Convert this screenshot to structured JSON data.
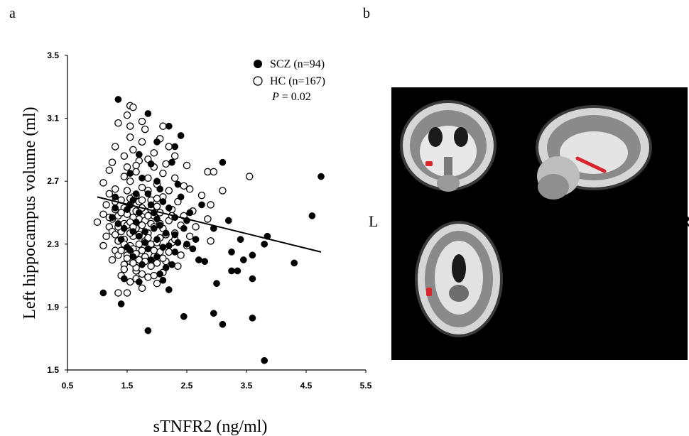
{
  "panels": {
    "a_label": "a",
    "b_label": "b"
  },
  "chart_data": {
    "type": "scatter",
    "xlabel": "sTNFR2 (ng/ml)",
    "ylabel": "Left hippocampus volume (ml)",
    "xlim": [
      0.5,
      5.5
    ],
    "ylim": [
      1.5,
      3.5
    ],
    "x_ticks": [
      "0.5",
      "1.5",
      "2.5",
      "3.5",
      "4.5",
      "5.5"
    ],
    "y_ticks": [
      "1.5",
      "1.9",
      "2.3",
      "2.7",
      "3.1",
      "3.5"
    ],
    "legend_placement": "top-right",
    "annotation": {
      "p_symbol": "P",
      "p_value": "= 0.02"
    },
    "trendline": {
      "x": [
        1.0,
        4.75
      ],
      "y": [
        2.6,
        2.25
      ]
    },
    "series": [
      {
        "name": "SCZ (n=94)",
        "marker": "filled",
        "points": [
          [
            1.35,
            3.22
          ],
          [
            1.85,
            3.13
          ],
          [
            2.2,
            3.05
          ],
          [
            2.4,
            2.99
          ],
          [
            2.3,
            2.92
          ],
          [
            2.0,
            2.95
          ],
          [
            1.7,
            2.87
          ],
          [
            1.9,
            2.81
          ],
          [
            2.25,
            2.82
          ],
          [
            3.1,
            2.82
          ],
          [
            1.55,
            2.75
          ],
          [
            1.75,
            2.72
          ],
          [
            2.0,
            2.7
          ],
          [
            2.35,
            2.68
          ],
          [
            4.75,
            2.73
          ],
          [
            1.3,
            2.6
          ],
          [
            1.6,
            2.58
          ],
          [
            1.85,
            2.62
          ],
          [
            2.1,
            2.57
          ],
          [
            2.4,
            2.6
          ],
          [
            2.75,
            2.55
          ],
          [
            1.5,
            2.52
          ],
          [
            1.95,
            2.5
          ],
          [
            2.3,
            2.47
          ],
          [
            2.55,
            2.5
          ],
          [
            1.25,
            2.47
          ],
          [
            1.65,
            2.44
          ],
          [
            2.05,
            2.42
          ],
          [
            2.5,
            2.45
          ],
          [
            3.2,
            2.45
          ],
          [
            4.6,
            2.48
          ],
          [
            1.45,
            2.4
          ],
          [
            1.8,
            2.38
          ],
          [
            2.15,
            2.37
          ],
          [
            2.45,
            2.4
          ],
          [
            2.95,
            2.4
          ],
          [
            1.4,
            2.33
          ],
          [
            1.7,
            2.35
          ],
          [
            2.0,
            2.33
          ],
          [
            2.35,
            2.31
          ],
          [
            2.65,
            2.33
          ],
          [
            3.4,
            2.33
          ],
          [
            3.85,
            2.35
          ],
          [
            1.5,
            2.28
          ],
          [
            1.85,
            2.27
          ],
          [
            2.2,
            2.29
          ],
          [
            2.6,
            2.27
          ],
          [
            3.8,
            2.3
          ],
          [
            1.6,
            2.22
          ],
          [
            2.0,
            2.22
          ],
          [
            2.3,
            2.25
          ],
          [
            3.25,
            2.25
          ],
          [
            3.45,
            2.2
          ],
          [
            1.75,
            2.17
          ],
          [
            2.15,
            2.15
          ],
          [
            2.8,
            2.19
          ],
          [
            3.6,
            2.23
          ],
          [
            4.3,
            2.18
          ],
          [
            2.05,
            2.11
          ],
          [
            3.25,
            2.13
          ],
          [
            3.35,
            2.13
          ],
          [
            3.6,
            2.08
          ],
          [
            1.45,
            2.08
          ],
          [
            2.1,
            2.07
          ],
          [
            1.7,
            2.06
          ],
          [
            3.0,
            2.05
          ],
          [
            2.2,
            2.01
          ],
          [
            1.1,
            1.99
          ],
          [
            1.4,
            1.92
          ],
          [
            2.45,
            1.84
          ],
          [
            2.95,
            1.86
          ],
          [
            3.1,
            1.79
          ],
          [
            3.6,
            1.83
          ],
          [
            1.85,
            1.75
          ],
          [
            3.8,
            1.56
          ],
          [
            1.3,
            2.53
          ],
          [
            1.55,
            2.55
          ],
          [
            1.9,
            2.55
          ],
          [
            2.2,
            2.53
          ],
          [
            1.7,
            2.5
          ],
          [
            2.0,
            2.46
          ],
          [
            1.35,
            2.43
          ],
          [
            1.6,
            2.38
          ],
          [
            1.95,
            2.4
          ],
          [
            2.3,
            2.36
          ],
          [
            1.8,
            2.31
          ],
          [
            2.1,
            2.28
          ],
          [
            2.5,
            2.3
          ],
          [
            1.55,
            2.26
          ],
          [
            1.9,
            2.2
          ],
          [
            2.25,
            2.17
          ],
          [
            2.7,
            2.2
          ],
          [
            1.65,
            2.62
          ],
          [
            2.05,
            2.65
          ]
        ]
      },
      {
        "name": "HC (n=167)",
        "marker": "open",
        "points": [
          [
            1.35,
            3.07
          ],
          [
            1.55,
            3.18
          ],
          [
            1.6,
            3.17
          ],
          [
            1.5,
            3.12
          ],
          [
            1.75,
            3.08
          ],
          [
            2.1,
            3.05
          ],
          [
            1.55,
            3.05
          ],
          [
            1.8,
            3.03
          ],
          [
            1.55,
            2.98
          ],
          [
            2.05,
            2.97
          ],
          [
            1.75,
            2.95
          ],
          [
            1.3,
            2.92
          ],
          [
            1.6,
            2.9
          ],
          [
            2.2,
            2.92
          ],
          [
            1.95,
            2.88
          ],
          [
            1.45,
            2.86
          ],
          [
            2.3,
            2.86
          ],
          [
            1.25,
            2.82
          ],
          [
            1.7,
            2.83
          ],
          [
            2.15,
            2.81
          ],
          [
            1.5,
            2.79
          ],
          [
            1.95,
            2.79
          ],
          [
            2.5,
            2.8
          ],
          [
            1.2,
            2.77
          ],
          [
            1.65,
            2.76
          ],
          [
            2.1,
            2.75
          ],
          [
            2.85,
            2.76
          ],
          [
            2.95,
            2.76
          ],
          [
            1.45,
            2.73
          ],
          [
            1.85,
            2.72
          ],
          [
            2.3,
            2.72
          ],
          [
            3.55,
            2.73
          ],
          [
            1.1,
            2.69
          ],
          [
            1.55,
            2.7
          ],
          [
            2.0,
            2.68
          ],
          [
            2.45,
            2.67
          ],
          [
            1.3,
            2.65
          ],
          [
            1.75,
            2.66
          ],
          [
            2.2,
            2.64
          ],
          [
            2.55,
            2.65
          ],
          [
            3.1,
            2.64
          ],
          [
            1.2,
            2.62
          ],
          [
            1.65,
            2.61
          ],
          [
            2.1,
            2.6
          ],
          [
            2.75,
            2.61
          ],
          [
            1.4,
            2.58
          ],
          [
            1.9,
            2.58
          ],
          [
            2.35,
            2.57
          ],
          [
            1.15,
            2.55
          ],
          [
            1.55,
            2.55
          ],
          [
            2.0,
            2.54
          ],
          [
            2.9,
            2.55
          ],
          [
            1.3,
            2.52
          ],
          [
            1.8,
            2.51
          ],
          [
            2.25,
            2.52
          ],
          [
            2.6,
            2.51
          ],
          [
            1.1,
            2.49
          ],
          [
            1.5,
            2.49
          ],
          [
            1.95,
            2.48
          ],
          [
            2.45,
            2.48
          ],
          [
            1.25,
            2.46
          ],
          [
            1.7,
            2.46
          ],
          [
            2.2,
            2.45
          ],
          [
            2.85,
            2.46
          ],
          [
            1.0,
            2.44
          ],
          [
            1.45,
            2.43
          ],
          [
            1.9,
            2.43
          ],
          [
            2.4,
            2.42
          ],
          [
            1.2,
            2.41
          ],
          [
            1.65,
            2.4
          ],
          [
            2.1,
            2.4
          ],
          [
            2.65,
            2.41
          ],
          [
            1.4,
            2.38
          ],
          [
            1.85,
            2.37
          ],
          [
            2.3,
            2.37
          ],
          [
            1.15,
            2.35
          ],
          [
            1.6,
            2.35
          ],
          [
            2.05,
            2.34
          ],
          [
            2.55,
            2.35
          ],
          [
            1.35,
            2.32
          ],
          [
            1.8,
            2.32
          ],
          [
            2.25,
            2.31
          ],
          [
            2.9,
            2.32
          ],
          [
            1.1,
            2.29
          ],
          [
            1.55,
            2.29
          ],
          [
            2.0,
            2.28
          ],
          [
            2.5,
            2.29
          ],
          [
            1.3,
            2.26
          ],
          [
            1.75,
            2.26
          ],
          [
            2.2,
            2.25
          ],
          [
            1.5,
            2.23
          ],
          [
            1.95,
            2.22
          ],
          [
            2.4,
            2.23
          ],
          [
            1.25,
            2.2
          ],
          [
            1.7,
            2.2
          ],
          [
            2.15,
            2.19
          ],
          [
            1.45,
            2.17
          ],
          [
            1.9,
            2.16
          ],
          [
            2.35,
            2.16
          ],
          [
            1.65,
            2.13
          ],
          [
            2.1,
            2.12
          ],
          [
            1.4,
            2.1
          ],
          [
            1.85,
            2.09
          ],
          [
            1.55,
            2.06
          ],
          [
            2.0,
            2.05
          ],
          [
            1.75,
            2.02
          ],
          [
            1.35,
            1.99
          ],
          [
            1.5,
            1.99
          ],
          [
            1.6,
            2.6
          ],
          [
            1.7,
            2.57
          ],
          [
            1.45,
            2.53
          ],
          [
            1.75,
            2.53
          ],
          [
            1.6,
            2.47
          ],
          [
            2.05,
            2.5
          ],
          [
            1.35,
            2.48
          ],
          [
            1.8,
            2.45
          ],
          [
            1.5,
            2.42
          ],
          [
            1.95,
            2.41
          ],
          [
            1.25,
            2.38
          ],
          [
            1.7,
            2.36
          ],
          [
            2.15,
            2.36
          ],
          [
            1.45,
            2.33
          ],
          [
            1.9,
            2.3
          ],
          [
            1.6,
            2.27
          ],
          [
            2.05,
            2.25
          ],
          [
            1.35,
            2.23
          ],
          [
            1.8,
            2.22
          ],
          [
            1.55,
            2.19
          ],
          [
            2.0,
            2.18
          ],
          [
            1.65,
            2.15
          ],
          [
            1.5,
            2.64
          ],
          [
            1.85,
            2.64
          ],
          [
            1.3,
            2.57
          ],
          [
            1.55,
            2.59
          ],
          [
            1.75,
            2.58
          ],
          [
            2.0,
            2.59
          ],
          [
            1.4,
            2.5
          ],
          [
            1.65,
            2.51
          ],
          [
            1.9,
            2.52
          ],
          [
            1.2,
            2.47
          ],
          [
            1.55,
            2.44
          ],
          [
            1.85,
            2.48
          ],
          [
            2.25,
            2.48
          ],
          [
            1.35,
            2.41
          ],
          [
            1.6,
            2.41
          ],
          [
            1.75,
            2.42
          ],
          [
            2.05,
            2.43
          ],
          [
            1.3,
            2.36
          ],
          [
            1.55,
            2.37
          ],
          [
            1.85,
            2.34
          ],
          [
            2.3,
            2.33
          ],
          [
            1.45,
            2.3
          ],
          [
            1.7,
            2.3
          ],
          [
            2.0,
            2.31
          ],
          [
            1.4,
            2.26
          ],
          [
            1.65,
            2.24
          ],
          [
            1.95,
            2.26
          ],
          [
            1.5,
            2.21
          ],
          [
            1.8,
            2.19
          ],
          [
            2.1,
            2.21
          ],
          [
            1.6,
            2.18
          ],
          [
            1.45,
            2.14
          ],
          [
            1.75,
            2.11
          ],
          [
            1.65,
            2.08
          ],
          [
            1.95,
            2.1
          ],
          [
            1.85,
            2.84
          ],
          [
            1.65,
            2.8
          ]
        ]
      }
    ]
  },
  "brain": {
    "left_label": "L",
    "right_label": "R",
    "highlight_color": "#d8262b"
  }
}
